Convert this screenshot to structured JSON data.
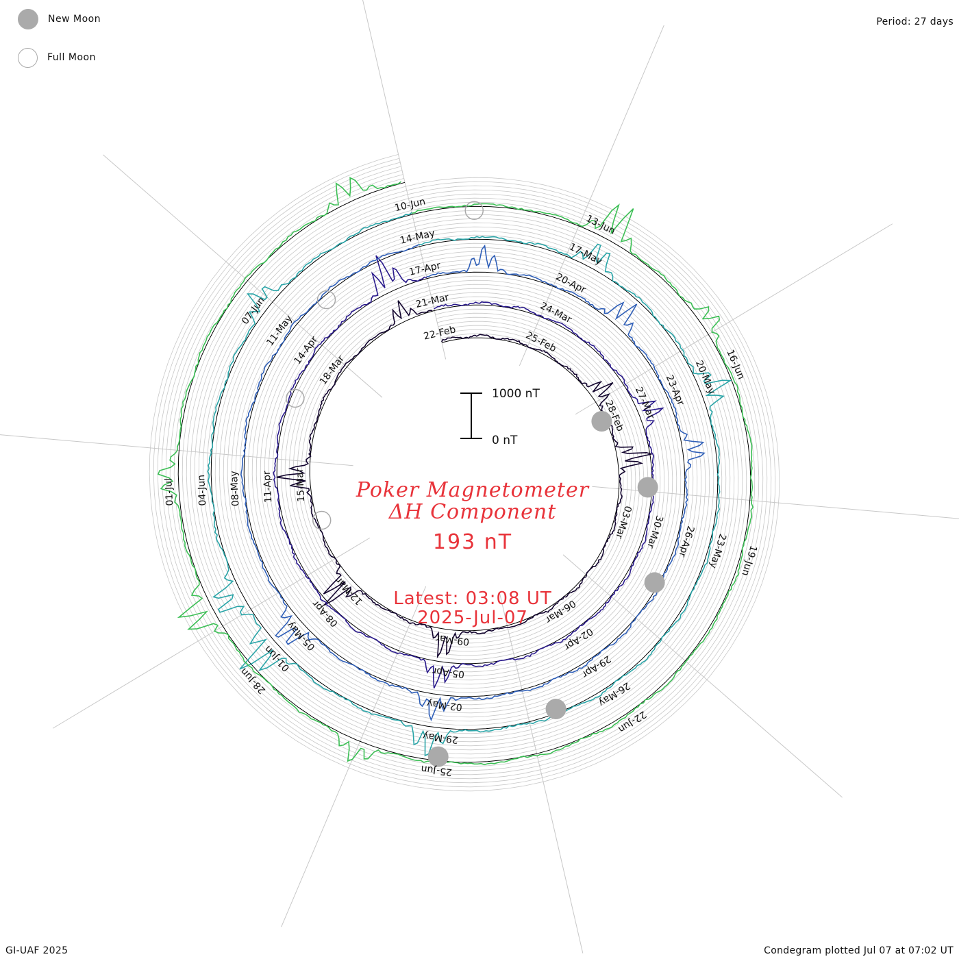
{
  "legend": {
    "new_moon_label": "New Moon",
    "full_moon_label": "Full Moon"
  },
  "period_text": "Period: 27 days",
  "footer": {
    "left": "GI-UAF 2025",
    "right": "Condegram plotted Jul 07 at 07:02 UT"
  },
  "title": {
    "line1": "Poker Magnetometer",
    "line2": "ΔH Component",
    "value": "193 nT",
    "latest": "Latest: 03:08 UT",
    "date": "2025-Jul-07"
  },
  "scale_bar": {
    "top_label": "1000 nT",
    "bottom_label": "0 nT"
  },
  "colors": {
    "title": "#e8333a",
    "new_moon": "#aaaaaa",
    "grid": "#c8c8c8",
    "rotation_series": [
      "#12042e",
      "#2a1a8c",
      "#2f5fb8",
      "#2aa5a8",
      "#3cbf55",
      "#a8b820",
      "#c88a10",
      "#d04a10",
      "#cc0000"
    ]
  },
  "chart_data": {
    "type": "condegram",
    "period_days": 27,
    "start_date": "2025-02-22",
    "end_date": "2025-07-07",
    "scale_nT": [
      0,
      1000
    ],
    "date_ticks": [
      "22-Feb",
      "25-Feb",
      "28-Feb",
      "03-Mar",
      "06-Mar",
      "09-Mar",
      "12-Mar",
      "15-Mar",
      "18-Mar",
      "21-Mar",
      "24-Mar",
      "27-Mar",
      "30-Mar",
      "02-Apr",
      "05-Apr",
      "08-Apr",
      "11-Apr",
      "14-Apr",
      "17-Apr",
      "20-Apr",
      "23-Apr",
      "26-Apr",
      "29-Apr",
      "02-May",
      "05-May",
      "08-May",
      "11-May",
      "14-May",
      "17-May",
      "20-May",
      "23-May",
      "26-May",
      "29-May",
      "01-Jun",
      "04-Jun",
      "07-Jun",
      "10-Jun",
      "13-Jun",
      "16-Jun",
      "19-Jun",
      "22-Jun",
      "25-Jun",
      "28-Jun",
      "01-Jul"
    ],
    "new_moons": [
      "2025-02-28",
      "2025-03-29",
      "2025-04-27",
      "2025-05-27",
      "2025-06-25"
    ],
    "full_moons": [
      "2025-03-14",
      "2025-04-13",
      "2025-05-12",
      "2025-06-11"
    ],
    "disturbances_nT": [
      {
        "date": "2025-02-27",
        "peak_nT": 520
      },
      {
        "date": "2025-03-01",
        "peak_nT": 750
      },
      {
        "date": "2025-03-09",
        "peak_nT": 650
      },
      {
        "date": "2025-03-12",
        "peak_nT": 820
      },
      {
        "date": "2025-03-15",
        "peak_nT": 700
      },
      {
        "date": "2025-03-20",
        "peak_nT": 420
      },
      {
        "date": "2025-03-27",
        "peak_nT": 520
      },
      {
        "date": "2025-04-05",
        "peak_nT": 550
      },
      {
        "date": "2025-04-16",
        "peak_nT": 820
      },
      {
        "date": "2025-04-18",
        "peak_nT": 560
      },
      {
        "date": "2025-04-21",
        "peak_nT": 620
      },
      {
        "date": "2025-04-24",
        "peak_nT": 500
      },
      {
        "date": "2025-05-02",
        "peak_nT": 520
      },
      {
        "date": "2025-05-05",
        "peak_nT": 700
      },
      {
        "date": "2025-05-17",
        "peak_nT": 600
      },
      {
        "date": "2025-05-20",
        "peak_nT": 650
      },
      {
        "date": "2025-05-29",
        "peak_nT": 650
      },
      {
        "date": "2025-06-01",
        "peak_nT": 950
      },
      {
        "date": "2025-06-02",
        "peak_nT": 700
      },
      {
        "date": "2025-06-07",
        "peak_nT": 520
      },
      {
        "date": "2025-06-13",
        "peak_nT": 900
      },
      {
        "date": "2025-06-15",
        "peak_nT": 420
      },
      {
        "date": "2025-06-26",
        "peak_nT": 480
      },
      {
        "date": "2025-06-29",
        "peak_nT": 780
      },
      {
        "date": "2025-07-01",
        "peak_nT": 450
      },
      {
        "date": "2025-07-06",
        "peak_nT": 520
      }
    ],
    "latest_value_nT": 193
  }
}
